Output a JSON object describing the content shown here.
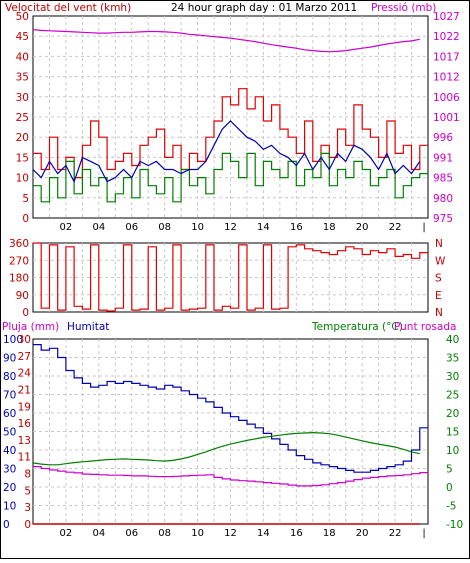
{
  "header": {
    "left_label": "Velocitat del vent (kmh)",
    "title": "24 hour graph day : 01 Marzo 2011",
    "right_label": "Pressió (mb)"
  },
  "colors": {
    "frame": "#000000",
    "background": "#ffffff",
    "grid": "#c8c8c8",
    "wind": "#e00000",
    "gust": "#008000",
    "pressure": "#cc00cc",
    "humidity": "#0000b0",
    "temperature": "#008000",
    "dewpoint": "#cc00cc",
    "rain": "#c00000",
    "left_axis": "#c00000",
    "wind_axis": "#c00000"
  },
  "x_tick_labels": [
    "02",
    "04",
    "06",
    "08",
    "10",
    "12",
    "14",
    "16",
    "18",
    "20",
    "22"
  ],
  "chart_data": [
    {
      "type": "line",
      "name": "wind-pressure",
      "x": [
        0,
        0.5,
        1,
        1.5,
        2,
        2.5,
        3,
        3.5,
        4,
        4.5,
        5,
        5.5,
        6,
        6.5,
        7,
        7.5,
        8,
        8.5,
        9,
        9.5,
        10,
        10.5,
        11,
        11.5,
        12,
        12.5,
        13,
        13.5,
        14,
        14.5,
        15,
        15.5,
        16,
        16.5,
        17,
        17.5,
        18,
        18.5,
        19,
        19.5,
        20,
        20.5,
        21,
        21.5,
        22,
        22.5,
        23,
        23.5
      ],
      "y_left_ticks": [
        0,
        5,
        10,
        15,
        20,
        25,
        30,
        35,
        40,
        45,
        50
      ],
      "y_left_range": [
        0,
        50
      ],
      "y_right_ticks": [
        975,
        980,
        985,
        991,
        996,
        1001,
        1006,
        1012,
        1017,
        1022,
        1027
      ],
      "y_right_range": [
        975,
        1027
      ],
      "x_range": [
        0,
        24
      ],
      "series": [
        {
          "key": "wind",
          "axis": "left",
          "values": [
            16,
            12,
            20,
            12,
            15,
            10,
            18,
            24,
            20,
            12,
            14,
            16,
            13,
            18,
            20,
            22,
            15,
            18,
            12,
            16,
            14,
            20,
            24,
            30,
            28,
            32,
            27,
            30,
            24,
            28,
            22,
            20,
            16,
            24,
            14,
            18,
            15,
            22,
            18,
            28,
            22,
            20,
            15,
            24,
            16,
            18,
            12,
            18
          ]
        },
        {
          "key": "gust",
          "axis": "left",
          "values": [
            8,
            4,
            10,
            5,
            14,
            6,
            12,
            8,
            10,
            4,
            6,
            10,
            5,
            12,
            8,
            6,
            10,
            4,
            12,
            8,
            10,
            6,
            12,
            16,
            14,
            10,
            16,
            8,
            14,
            12,
            10,
            14,
            8,
            12,
            10,
            16,
            8,
            12,
            10,
            14,
            12,
            8,
            10,
            12,
            5,
            8,
            10,
            11
          ]
        },
        {
          "key": "average",
          "axis": "left",
          "values": [
            12,
            10,
            14,
            11,
            13,
            9,
            15,
            14,
            13,
            9,
            10,
            12,
            10,
            14,
            13,
            14,
            12,
            12,
            11,
            12,
            12,
            14,
            18,
            22,
            24,
            22,
            20,
            19,
            17,
            18,
            16,
            15,
            13,
            16,
            12,
            15,
            12,
            16,
            14,
            18,
            17,
            15,
            12,
            16,
            11,
            13,
            11,
            14
          ]
        },
        {
          "key": "pressure",
          "axis": "right",
          "values": [
            1023.5,
            1023.3,
            1023.2,
            1023.1,
            1023.0,
            1022.9,
            1022.8,
            1022.7,
            1022.6,
            1022.6,
            1022.7,
            1022.8,
            1022.8,
            1022.9,
            1023.0,
            1023.0,
            1022.9,
            1022.8,
            1022.6,
            1022.3,
            1022.1,
            1021.9,
            1021.7,
            1021.5,
            1021.3,
            1021.0,
            1020.7,
            1020.4,
            1020.0,
            1019.6,
            1019.3,
            1019.0,
            1018.7,
            1018.3,
            1018.1,
            1017.9,
            1017.8,
            1017.9,
            1018.1,
            1018.4,
            1018.7,
            1019.0,
            1019.4,
            1019.8,
            1020.1,
            1020.4,
            1020.6,
            1021.0
          ]
        }
      ]
    },
    {
      "type": "line",
      "name": "wind-direction",
      "x": [
        0,
        0.5,
        1,
        1.5,
        2,
        2.5,
        3,
        3.5,
        4,
        4.5,
        5,
        5.5,
        6,
        6.5,
        7,
        7.5,
        8,
        8.5,
        9,
        9.5,
        10,
        10.5,
        11,
        11.5,
        12,
        12.5,
        13,
        13.5,
        14,
        14.5,
        15,
        15.5,
        16,
        16.5,
        17,
        17.5,
        18,
        18.5,
        19,
        19.5,
        20,
        20.5,
        21,
        21.5,
        22,
        22.5,
        23,
        23.5
      ],
      "y_left_ticks": [
        0,
        90,
        180,
        270,
        360
      ],
      "y_right_ticks": [
        "N",
        "W",
        "S",
        "E",
        "N"
      ],
      "y_range": [
        0,
        360
      ],
      "x_range": [
        0,
        24
      ],
      "series": [
        {
          "key": "direction",
          "values": [
            360,
            20,
            350,
            10,
            340,
            30,
            15,
            350,
            10,
            5,
            20,
            350,
            10,
            15,
            340,
            10,
            20,
            350,
            10,
            15,
            20,
            350,
            10,
            30,
            20,
            350,
            10,
            20,
            350,
            15,
            20,
            340,
            350,
            330,
            320,
            310,
            300,
            320,
            340,
            330,
            300,
            320,
            310,
            330,
            290,
            300,
            280,
            310
          ]
        }
      ]
    },
    {
      "type": "line",
      "name": "humidity-temperature",
      "labels": {
        "rain": "Pluja (mm)",
        "humidity": "Humitat",
        "temperature": "Temperatura (°C)",
        "dewpoint": "Punt rosada"
      },
      "x": [
        0,
        0.5,
        1,
        1.5,
        2,
        2.5,
        3,
        3.5,
        4,
        4.5,
        5,
        5.5,
        6,
        6.5,
        7,
        7.5,
        8,
        8.5,
        9,
        9.5,
        10,
        10.5,
        11,
        11.5,
        12,
        12.5,
        13,
        13.5,
        14,
        14.5,
        15,
        15.5,
        16,
        16.5,
        17,
        17.5,
        18,
        18.5,
        19,
        19.5,
        20,
        20.5,
        21,
        21.5,
        22,
        22.5,
        23,
        23.5
      ],
      "y_left_ticks_humidity": [
        0,
        10,
        20,
        30,
        40,
        50,
        60,
        70,
        80,
        90,
        100
      ],
      "y_left_ticks_rain": [
        0,
        3,
        5,
        8,
        11,
        13,
        16,
        19,
        21,
        24,
        27,
        30
      ],
      "y_right_ticks": [
        -10,
        -5,
        0,
        5,
        10,
        15,
        20,
        25,
        30,
        35,
        40
      ],
      "y_left_range": [
        0,
        100
      ],
      "y_right_range": [
        -10,
        40
      ],
      "x_range": [
        0,
        24
      ],
      "series": [
        {
          "key": "humidity",
          "axis": "left",
          "values": [
            97,
            94,
            95,
            90,
            83,
            79,
            76,
            74,
            75,
            77,
            76,
            77,
            76,
            75,
            74,
            73,
            75,
            74,
            72,
            70,
            68,
            66,
            63,
            60,
            58,
            56,
            54,
            52,
            49,
            46,
            43,
            40,
            37,
            35,
            33,
            32,
            31,
            30,
            29,
            28,
            28,
            29,
            30,
            31,
            32,
            34,
            40,
            52
          ]
        },
        {
          "key": "temperature",
          "axis": "right",
          "values": [
            6.5,
            6.2,
            6.0,
            6.0,
            6.3,
            6.6,
            6.8,
            7.0,
            7.2,
            7.4,
            7.5,
            7.6,
            7.5,
            7.4,
            7.3,
            7.1,
            7.0,
            7.2,
            7.6,
            8.1,
            8.8,
            9.5,
            10.3,
            11.0,
            11.6,
            12.1,
            12.6,
            13.0,
            13.4,
            13.7,
            14.0,
            14.3,
            14.5,
            14.6,
            14.7,
            14.6,
            14.4,
            14.0,
            13.5,
            13.0,
            12.5,
            12.0,
            11.6,
            11.2,
            10.8,
            10.2,
            9.5,
            9.0
          ]
        },
        {
          "key": "dewpoint",
          "axis": "right",
          "values": [
            5.5,
            5.0,
            4.6,
            4.3,
            4.0,
            3.8,
            3.5,
            3.4,
            3.3,
            3.2,
            3.2,
            3.1,
            3.0,
            3.0,
            2.9,
            2.8,
            2.8,
            2.9,
            3.0,
            3.1,
            3.2,
            3.3,
            2.6,
            2.2,
            1.9,
            1.7,
            1.6,
            1.4,
            1.2,
            1.0,
            0.8,
            0.5,
            0.3,
            0.3,
            0.4,
            0.6,
            0.9,
            1.2,
            1.6,
            2.0,
            2.4,
            2.6,
            2.8,
            3.0,
            3.1,
            3.3,
            3.6,
            3.9
          ]
        },
        {
          "key": "rain",
          "axis": "left",
          "values": [
            0,
            0,
            0,
            0,
            0,
            0,
            0,
            0,
            0,
            0,
            0,
            0,
            0,
            0,
            0,
            0,
            0,
            0,
            0,
            0,
            0,
            0,
            0,
            0,
            0,
            0,
            0,
            0,
            0,
            0,
            0,
            0,
            0,
            0,
            0,
            0,
            0,
            0,
            0,
            0,
            0,
            0,
            0,
            0,
            0,
            0,
            0,
            0
          ]
        }
      ]
    }
  ]
}
